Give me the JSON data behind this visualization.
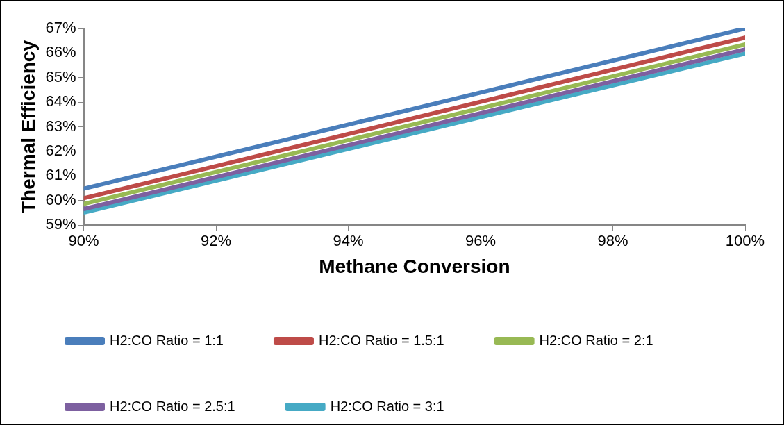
{
  "chart_data": {
    "type": "line",
    "xlabel": "Methane Conversion",
    "ylabel": "Thermal Efficiency",
    "x": [
      90,
      100
    ],
    "series": [
      {
        "name": "H2:CO Ratio = 1:1",
        "color": "#4a7ebb",
        "values": [
          60.48,
          67.0
        ]
      },
      {
        "name": "H2:CO Ratio = 1.5:1",
        "color": "#be4b48",
        "values": [
          60.09,
          66.63
        ]
      },
      {
        "name": "H2:CO Ratio = 2:1",
        "color": "#98b954",
        "values": [
          59.86,
          66.35
        ]
      },
      {
        "name": "H2:CO Ratio = 2.5:1",
        "color": "#7d60a0",
        "values": [
          59.65,
          66.15
        ]
      },
      {
        "name": "H2:CO Ratio = 3:1",
        "color": "#46aac5",
        "values": [
          59.51,
          65.98
        ]
      }
    ],
    "xlim": [
      90,
      100
    ],
    "xticks": [
      {
        "value": 90,
        "label": "90%"
      },
      {
        "value": 92,
        "label": "92%"
      },
      {
        "value": 94,
        "label": "94%"
      },
      {
        "value": 96,
        "label": "96%"
      },
      {
        "value": 98,
        "label": "98%"
      },
      {
        "value": 100,
        "label": "100%"
      }
    ],
    "ylim": [
      59,
      67
    ],
    "yticks": [
      {
        "value": 59,
        "label": "59%"
      },
      {
        "value": 60,
        "label": "60%"
      },
      {
        "value": 61,
        "label": "61%"
      },
      {
        "value": 62,
        "label": "62%"
      },
      {
        "value": 63,
        "label": "63%"
      },
      {
        "value": 64,
        "label": "64%"
      },
      {
        "value": 65,
        "label": "65%"
      },
      {
        "value": 66,
        "label": "66%"
      },
      {
        "value": 67,
        "label": "67%"
      }
    ],
    "grid": false,
    "legend": "bottom",
    "marker": "none",
    "line_style": "solid"
  }
}
